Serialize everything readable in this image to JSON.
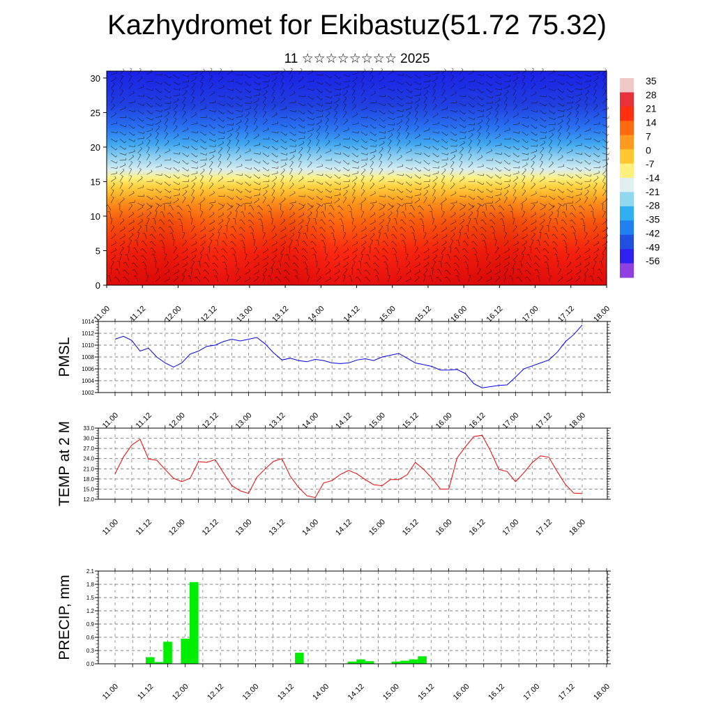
{
  "title": "Kazhydromet for Ekibastuz(51.72 75.32)",
  "subtitle": "11 ☆☆☆☆☆☆☆☆ 2025",
  "time_labels": [
    "11.00",
    "11.12",
    "12.00",
    "12.12",
    "13.00",
    "13.12",
    "14.00",
    "14.12",
    "15.00",
    "15.12",
    "16.00",
    "16.12",
    "17.00",
    "17.12",
    "18.00"
  ],
  "chart_data": [
    {
      "type": "heatmap",
      "name": "cross-section",
      "xlabel": "",
      "ylabel": "",
      "y_ticks": [
        0,
        5,
        10,
        15,
        20,
        25,
        30
      ],
      "ylim": [
        0,
        31
      ],
      "colorbar_labels": [
        "35",
        "28",
        "21",
        "14",
        "7",
        "0",
        "-7",
        "-14",
        "-21",
        "-28",
        "-35",
        "-42",
        "-49",
        "-56"
      ],
      "colorbar_colors": [
        "#f0c8c8",
        "#e8303a",
        "#ff3010",
        "#ff6a10",
        "#ff9a20",
        "#ffc830",
        "#fff080",
        "#e0f0f0",
        "#90d8f0",
        "#30b0f0",
        "#2080f0",
        "#2050e0",
        "#3020f0",
        "#9040e0"
      ],
      "has_wind_barbs": true
    },
    {
      "type": "line",
      "ylabel": "PMSL",
      "ylim": [
        1002,
        1014
      ],
      "y_ticks": [
        "1002",
        "1004",
        "1006",
        "1008",
        "1010",
        "1012",
        "1014"
      ],
      "color": "#0000ee",
      "x_hours": [
        0,
        3,
        6,
        9,
        12,
        15,
        18,
        21,
        24,
        27,
        30,
        33,
        36,
        39,
        42,
        45,
        48,
        51,
        54,
        57,
        60,
        63,
        66,
        69,
        72,
        75,
        78,
        81,
        84,
        87,
        90,
        93,
        96,
        99,
        102,
        105,
        108,
        111,
        114,
        117,
        120,
        123,
        126,
        129,
        132,
        135,
        138,
        141,
        144,
        147,
        150,
        153,
        156,
        159,
        162,
        165,
        168
      ],
      "values": [
        1011,
        1011.5,
        1010.8,
        1009,
        1009.5,
        1008,
        1007,
        1006.3,
        1007,
        1008.5,
        1009,
        1009.8,
        1010,
        1010.6,
        1011,
        1010.7,
        1011,
        1011.3,
        1010.2,
        1008.7,
        1007.5,
        1007.8,
        1007.4,
        1007.2,
        1007.6,
        1007.4,
        1007,
        1006.9,
        1007,
        1007.5,
        1007.7,
        1007.4,
        1008,
        1008.3,
        1008.6,
        1007.8,
        1007,
        1006.7,
        1006.4,
        1005.8,
        1005.8,
        1005.9,
        1005.2,
        1003.5,
        1002.8,
        1003,
        1003.2,
        1003.3,
        1004.6,
        1006,
        1006.5,
        1007,
        1007.5,
        1008.8,
        1010.6,
        1011.8,
        1013.4
      ]
    },
    {
      "type": "line",
      "ylabel": "TEMP at 2 M",
      "ylim": [
        12,
        33
      ],
      "y_ticks": [
        "12.0",
        "15.0",
        "18.0",
        "21.0",
        "24.0",
        "27.0",
        "30.0",
        "33.0"
      ],
      "color": "#ee0000",
      "x_hours": [
        0,
        3,
        6,
        9,
        12,
        15,
        18,
        21,
        24,
        27,
        30,
        33,
        36,
        39,
        42,
        45,
        48,
        51,
        54,
        57,
        60,
        63,
        66,
        69,
        72,
        75,
        78,
        81,
        84,
        87,
        90,
        93,
        96,
        99,
        102,
        105,
        108,
        111,
        114,
        117,
        120,
        123,
        126,
        129,
        132,
        135,
        138,
        141,
        144,
        147,
        150,
        153,
        156,
        159,
        162,
        165,
        168
      ],
      "values": [
        19.5,
        24.5,
        28,
        29.7,
        23.9,
        23.5,
        20.8,
        18.2,
        17.2,
        18.2,
        23.1,
        22.9,
        23.7,
        19.8,
        16,
        14.5,
        13.7,
        18.5,
        21,
        23.2,
        24,
        18.8,
        15.5,
        13,
        12.5,
        16.8,
        17.5,
        19.3,
        20.5,
        19.5,
        17.8,
        16.3,
        16,
        17.8,
        17.8,
        19.2,
        22.9,
        20.8,
        18.2,
        15,
        15,
        24.2,
        27.5,
        30.5,
        30.9,
        26.3,
        20.8,
        20.2,
        17.2,
        19.8,
        22.8,
        24.8,
        24.4,
        20.2,
        16.3,
        13.8,
        13.7
      ]
    },
    {
      "type": "bar",
      "ylabel": "PRECIP, mm",
      "ylim": [
        0,
        2.1
      ],
      "y_ticks": [
        "0.0",
        "0.3",
        "0.6",
        "0.9",
        "1.2",
        "1.5",
        "1.8",
        "2.1"
      ],
      "color": "#00ee00",
      "x_hours": [
        12,
        15,
        18,
        24,
        27,
        63,
        81,
        84,
        87,
        96,
        99,
        102,
        105
      ],
      "values": [
        0.15,
        0.04,
        0.5,
        0.57,
        1.85,
        0.25,
        0.05,
        0.1,
        0.06,
        0.05,
        0.07,
        0.1,
        0.17
      ]
    }
  ]
}
